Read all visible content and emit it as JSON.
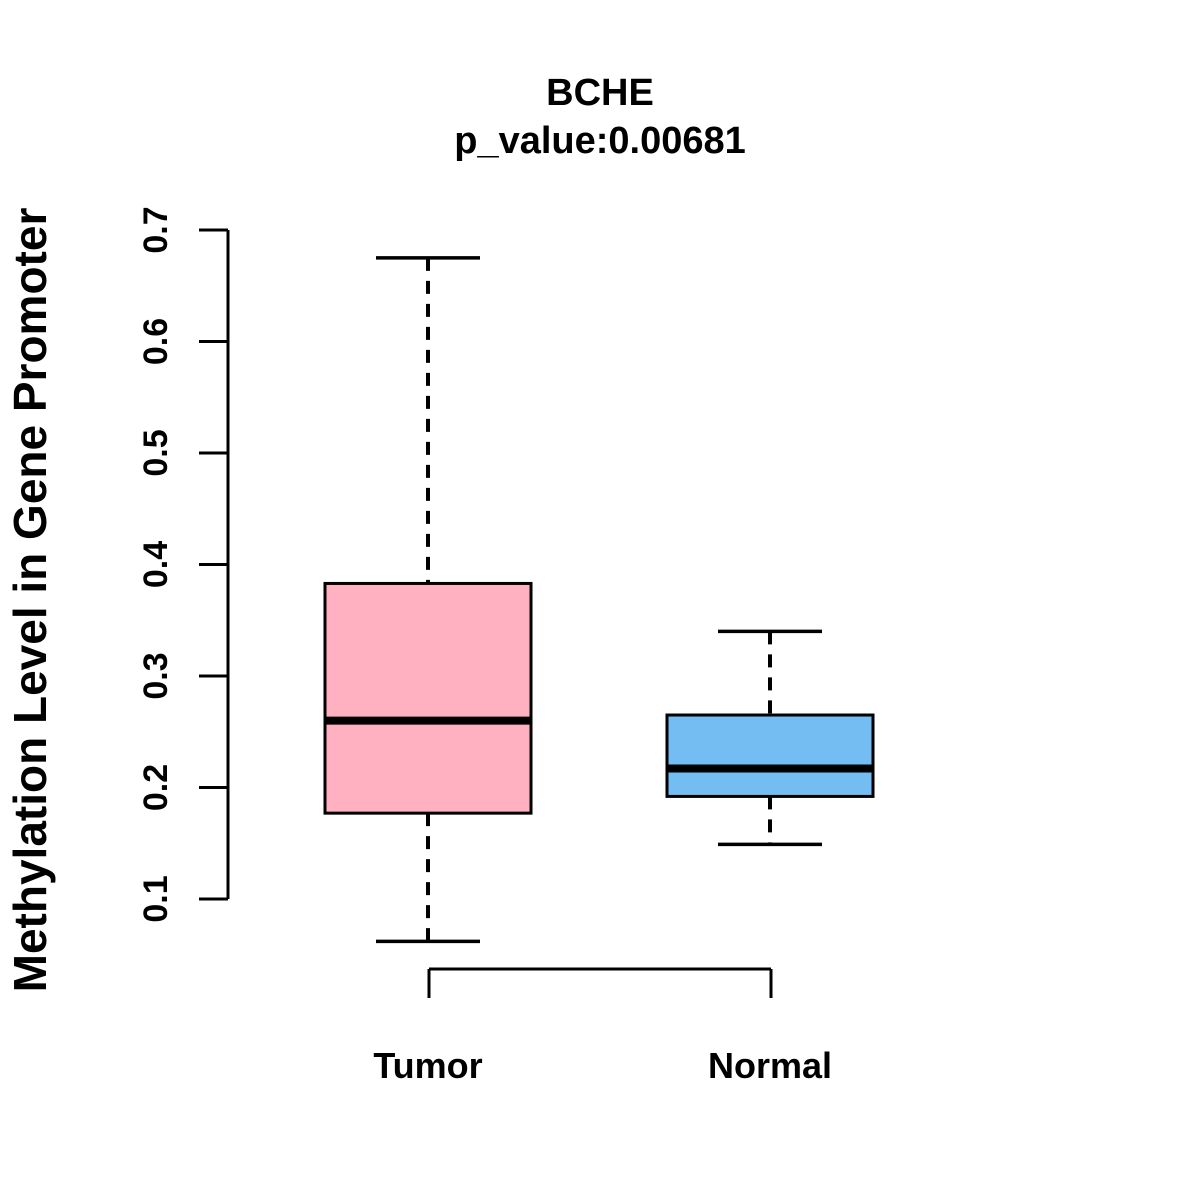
{
  "title": {
    "line1": "BCHE",
    "line2": "p_value:0.00681"
  },
  "colors": {
    "tumor_fill": "#FFB0C1",
    "normal_fill": "#73BDF2",
    "stroke": "#000000",
    "background": "#FFFFFF"
  },
  "chart_data": {
    "type": "boxplot",
    "title": "BCHE",
    "subtitle": "p_value:0.00681",
    "ylabel": "Methylation Level in Gene Promoter",
    "xlabel": "",
    "categories": [
      "Tumor",
      "Normal"
    ],
    "series": [
      {
        "name": "Tumor",
        "color": "#FFB0C1",
        "whisker_low": 0.062,
        "q1": 0.177,
        "median": 0.26,
        "q3": 0.383,
        "whisker_high": 0.675
      },
      {
        "name": "Normal",
        "color": "#73BDF2",
        "whisker_low": 0.149,
        "q1": 0.192,
        "median": 0.217,
        "q3": 0.265,
        "whisker_high": 0.34
      }
    ],
    "ylim": [
      0.1,
      0.7
    ],
    "yticks": [
      "0.1",
      "0.2",
      "0.3",
      "0.4",
      "0.5",
      "0.6",
      "0.7"
    ],
    "grid": false,
    "legend_position": "none"
  }
}
